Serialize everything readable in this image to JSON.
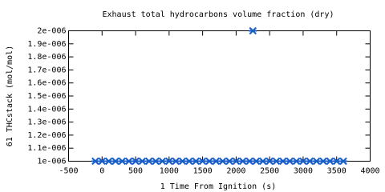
{
  "chart_data": {
    "type": "scatter",
    "title": "Exhaust total hydrocarbons volume fraction (dry)",
    "x_label": "1 Time From Ignition (s)",
    "y_label": "61 THCstack (mol/mol)",
    "color": "#1a5fc8",
    "x": [
      -100,
      0,
      100,
      200,
      300,
      400,
      500,
      600,
      700,
      800,
      900,
      1000,
      1100,
      1200,
      1300,
      1400,
      1500,
      1600,
      1700,
      1800,
      1900,
      2000,
      2100,
      2200,
      2250,
      2300,
      2400,
      2500,
      2600,
      2700,
      2800,
      2900,
      3000,
      3100,
      3200,
      3300,
      3400,
      3500,
      3600
    ],
    "values": [
      1e-06,
      1e-06,
      1e-06,
      1e-06,
      1e-06,
      1e-06,
      1e-06,
      1e-06,
      1e-06,
      1e-06,
      1e-06,
      1e-06,
      1e-06,
      1e-06,
      1e-06,
      1e-06,
      1e-06,
      1e-06,
      1e-06,
      1e-06,
      1e-06,
      1e-06,
      1e-06,
      1e-06,
      2e-06,
      1e-06,
      1e-06,
      1e-06,
      1e-06,
      1e-06,
      1e-06,
      1e-06,
      1e-06,
      1e-06,
      1e-06,
      1e-06,
      1e-06,
      1e-06,
      1e-06
    ],
    "xlim": [
      -500,
      4000
    ],
    "xticks": [
      -500,
      0,
      500,
      1000,
      1500,
      2000,
      2500,
      3000,
      3500,
      4000
    ],
    "ylim": [
      1e-06,
      2e-06
    ],
    "yticks": [
      {
        "value": 1e-06,
        "label": "1e-006"
      },
      {
        "value": 1.1e-06,
        "label": "1.1e-006"
      },
      {
        "value": 1.2e-06,
        "label": "1.2e-006"
      },
      {
        "value": 1.3e-06,
        "label": "1.3e-006"
      },
      {
        "value": 1.4e-06,
        "label": "1.4e-006"
      },
      {
        "value": 1.5e-06,
        "label": "1.5e-006"
      },
      {
        "value": 1.6e-06,
        "label": "1.6e-006"
      },
      {
        "value": 1.7e-06,
        "label": "1.7e-006"
      },
      {
        "value": 1.8e-06,
        "label": "1.8e-006"
      },
      {
        "value": 1.9e-06,
        "label": "1.9e-006"
      },
      {
        "value": 2e-06,
        "label": "2e-006"
      }
    ]
  }
}
